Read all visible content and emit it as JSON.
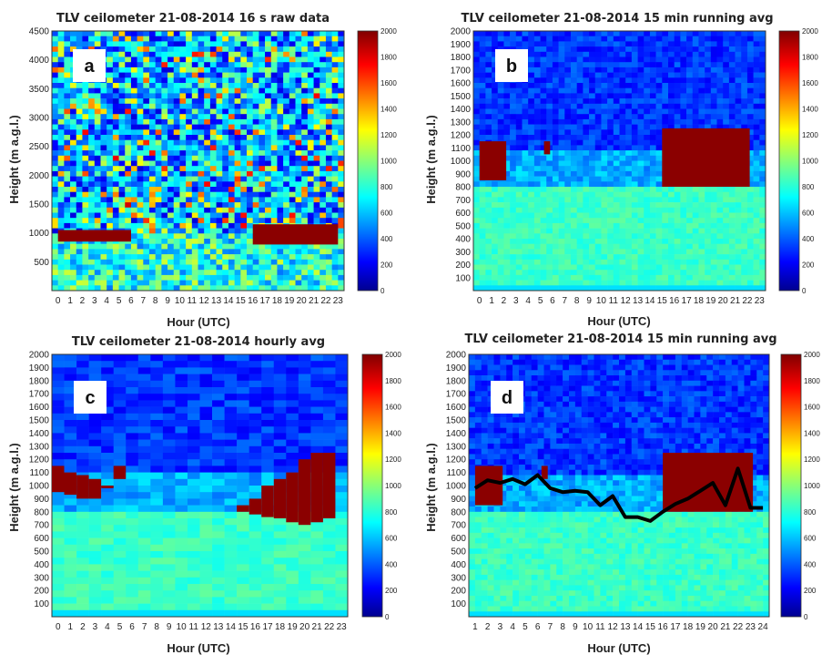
{
  "chart_data": [
    {
      "type": "heatmap",
      "title": "TLV ceilometer 21-08-2014 16 s raw data",
      "panel_label": "a",
      "xlabel": "Hour (UTC)",
      "ylabel": "Height (m a.g.l.)",
      "x_ticks": [
        "0",
        "1",
        "2",
        "3",
        "4",
        "5",
        "6",
        "7",
        "8",
        "9",
        "10",
        "11",
        "12",
        "13",
        "14",
        "15",
        "16",
        "17",
        "18",
        "19",
        "20",
        "21",
        "22",
        "23"
      ],
      "y_ticks": [
        "500",
        "1000",
        "1500",
        "2000",
        "2500",
        "3000",
        "3500",
        "4000",
        "4500"
      ],
      "ylim": [
        0,
        4500
      ],
      "colorbar": {
        "min": 0,
        "max": 2000,
        "ticks": [
          "0",
          "200",
          "400",
          "600",
          "800",
          "1000",
          "1200",
          "1400",
          "1600",
          "1800",
          "2000"
        ]
      },
      "cloud_layers": [
        {
          "hour_start": 0,
          "hour_end": 6,
          "top": 1050,
          "bottom": 850
        },
        {
          "hour_start": 16,
          "hour_end": 23,
          "top": 1150,
          "bottom": 800
        }
      ]
    },
    {
      "type": "heatmap",
      "title": "TLV ceilometer 21-08-2014 15 min running avg",
      "panel_label": "b",
      "xlabel": "Hour (UTC)",
      "ylabel": "Height (m a.g.l.)",
      "x_ticks": [
        "0",
        "1",
        "2",
        "3",
        "4",
        "5",
        "6",
        "7",
        "8",
        "9",
        "10",
        "11",
        "12",
        "13",
        "14",
        "15",
        "16",
        "17",
        "18",
        "19",
        "20",
        "21",
        "22",
        "23"
      ],
      "y_ticks": [
        "100",
        "200",
        "300",
        "400",
        "500",
        "600",
        "700",
        "800",
        "900",
        "1000",
        "1100",
        "1200",
        "1300",
        "1400",
        "1500",
        "1600",
        "1700",
        "1800",
        "1900",
        "2000"
      ],
      "ylim": [
        0,
        2000
      ],
      "colorbar": {
        "min": 0,
        "max": 2000,
        "ticks": [
          "0",
          "200",
          "400",
          "600",
          "800",
          "1000",
          "1200",
          "1400",
          "1600",
          "1800",
          "2000"
        ]
      },
      "cloud_layers": [
        {
          "hour_start": 0,
          "hour_end": 2.2,
          "top": 1150,
          "bottom": 850
        },
        {
          "hour_start": 5.3,
          "hour_end": 5.8,
          "top": 1150,
          "bottom": 1050
        },
        {
          "hour_start": 15,
          "hour_end": 22.2,
          "top": 1250,
          "bottom": 800
        }
      ]
    },
    {
      "type": "heatmap",
      "title": "TLV ceilometer 21-08-2014 hourly avg",
      "panel_label": "c",
      "xlabel": "Hour (UTC)",
      "ylabel": "Height (m a.g.l.)",
      "x_ticks": [
        "0",
        "1",
        "2",
        "3",
        "4",
        "5",
        "6",
        "7",
        "8",
        "9",
        "10",
        "11",
        "12",
        "13",
        "14",
        "15",
        "16",
        "17",
        "18",
        "19",
        "20",
        "21",
        "22",
        "23"
      ],
      "y_ticks": [
        "100",
        "200",
        "300",
        "400",
        "500",
        "600",
        "700",
        "800",
        "900",
        "1000",
        "1100",
        "1200",
        "1300",
        "1400",
        "1500",
        "1600",
        "1700",
        "1800",
        "1900",
        "2000"
      ],
      "ylim": [
        0,
        2000
      ],
      "colorbar": {
        "min": 0,
        "max": 2000,
        "ticks": [
          "0",
          "200",
          "400",
          "600",
          "800",
          "1000",
          "1200",
          "1400",
          "1600",
          "1800",
          "2000"
        ]
      },
      "cloud_top": [
        1150,
        1100,
        1080,
        1050,
        1000,
        1150,
        null,
        null,
        null,
        null,
        null,
        null,
        null,
        null,
        null,
        850,
        900,
        1000,
        1050,
        1100,
        1200,
        1250,
        1250,
        null
      ],
      "cloud_bottom": [
        950,
        930,
        900,
        900,
        980,
        1050,
        null,
        null,
        null,
        null,
        null,
        null,
        null,
        null,
        null,
        800,
        780,
        760,
        750,
        720,
        700,
        720,
        750,
        null
      ]
    },
    {
      "type": "heatmap",
      "title": "TLV ceilometer 21-08-2014 15 min running avg",
      "panel_label": "d",
      "xlabel": "Hour (UTC)",
      "ylabel": "Height (m a.g.l.)",
      "x_ticks": [
        "1",
        "2",
        "3",
        "4",
        "5",
        "6",
        "7",
        "8",
        "9",
        "10",
        "11",
        "12",
        "13",
        "14",
        "15",
        "16",
        "17",
        "18",
        "19",
        "20",
        "21",
        "22",
        "23",
        "24"
      ],
      "y_ticks": [
        "100",
        "200",
        "300",
        "400",
        "500",
        "600",
        "700",
        "800",
        "900",
        "1000",
        "1100",
        "1200",
        "1300",
        "1400",
        "1500",
        "1600",
        "1700",
        "1800",
        "1900",
        "2000"
      ],
      "ylim": [
        0,
        2000
      ],
      "colorbar": {
        "min": 0,
        "max": 2000,
        "ticks": [
          "0",
          "200",
          "400",
          "600",
          "800",
          "1000",
          "1200",
          "1400",
          "1600",
          "1800",
          "2000"
        ]
      },
      "cloud_layers": [
        {
          "hour_start": 1,
          "hour_end": 3.2,
          "top": 1150,
          "bottom": 850
        },
        {
          "hour_start": 6.3,
          "hour_end": 6.8,
          "top": 1150,
          "bottom": 1050
        },
        {
          "hour_start": 16,
          "hour_end": 23.2,
          "top": 1250,
          "bottom": 800
        }
      ],
      "line": {
        "x": [
          1,
          2,
          3,
          4,
          5,
          6,
          7,
          8,
          9,
          10,
          11,
          12,
          13,
          14,
          15,
          16,
          17,
          18,
          19,
          20,
          21,
          22,
          23,
          24
        ],
        "y": [
          980,
          1040,
          1020,
          1050,
          1010,
          1080,
          980,
          950,
          960,
          950,
          850,
          920,
          760,
          760,
          730,
          800,
          860,
          900,
          960,
          1020,
          850,
          1130,
          830,
          830
        ]
      }
    }
  ]
}
